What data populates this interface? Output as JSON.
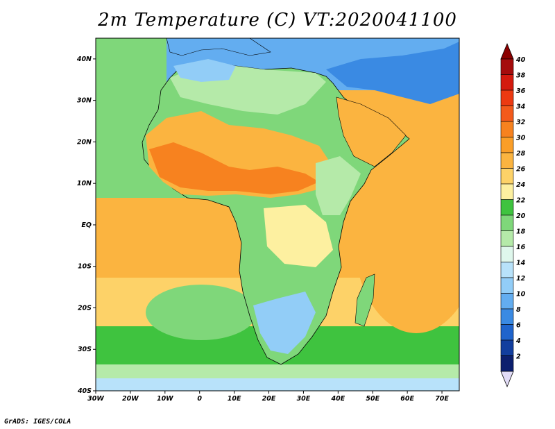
{
  "title": "2m Temperature (C) VT:2020041100",
  "credit": "GrADS: IGES/COLA",
  "map": {
    "lat_ticks": [
      "40N",
      "30N",
      "20N",
      "10N",
      "EQ",
      "10S",
      "20S",
      "30S",
      "40S"
    ],
    "lon_ticks": [
      "30W",
      "20W",
      "10W",
      "0",
      "10E",
      "20E",
      "30E",
      "40E",
      "50E",
      "60E",
      "70E"
    ],
    "extent": {
      "lon": [
        -30,
        75
      ],
      "lat": [
        -40,
        45
      ]
    }
  },
  "colorbar": {
    "labels": [
      "40",
      "38",
      "36",
      "34",
      "32",
      "30",
      "28",
      "26",
      "24",
      "22",
      "20",
      "18",
      "16",
      "14",
      "12",
      "10",
      "8",
      "6",
      "4",
      "2"
    ],
    "colors": [
      "#a50c0c",
      "#d41a0e",
      "#ec3a12",
      "#f35a1c",
      "#f7821f",
      "#fa9e28",
      "#fbb440",
      "#fdd268",
      "#fdf0a0",
      "#3fc33f",
      "#7fd77a",
      "#b5eaa9",
      "#dff7ec",
      "#b8e2fa",
      "#92cdf7",
      "#63adf0",
      "#3a8ae3",
      "#1f64cc",
      "#123e9e",
      "#0c1f6e"
    ],
    "top_arrow_color": "#8b0000",
    "bottom_arrow_color": "#e2dcf7"
  }
}
